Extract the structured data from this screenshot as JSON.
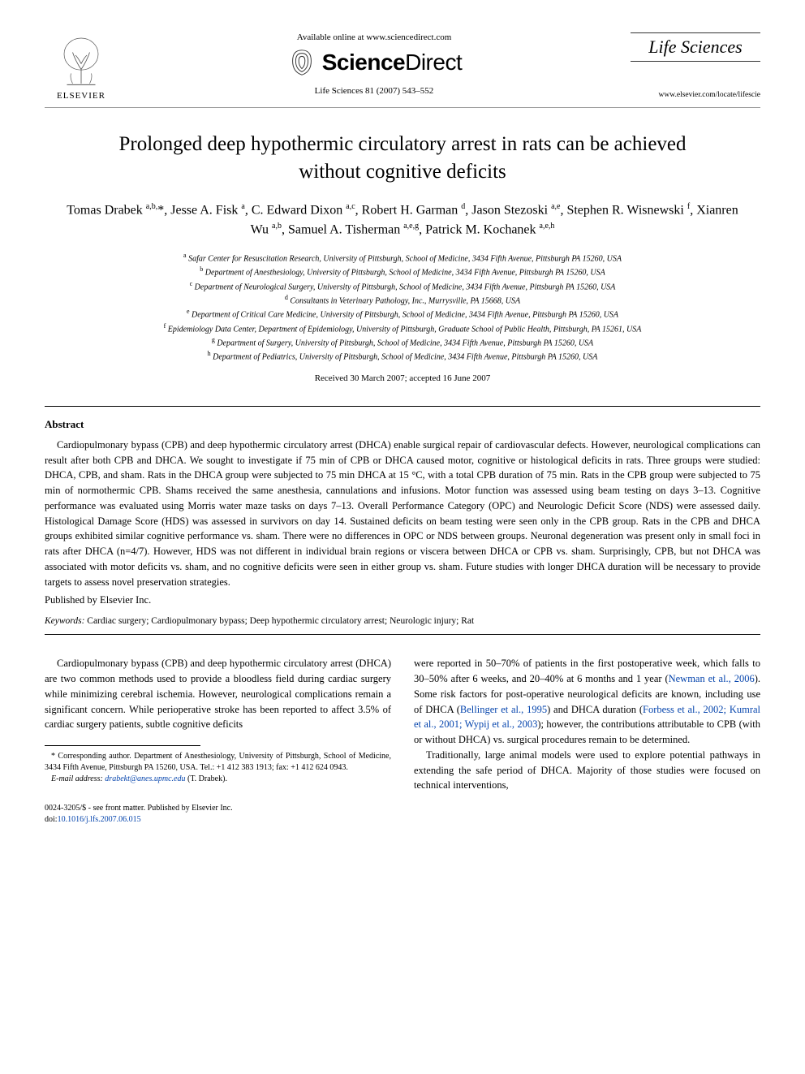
{
  "header": {
    "elsevier_label": "ELSEVIER",
    "available_online": "Available online at www.sciencedirect.com",
    "sd_science": "Science",
    "sd_direct": "Direct",
    "citation": "Life Sciences 81 (2007) 543–552",
    "journal_name": "Life Sciences",
    "journal_url": "www.elsevier.com/locate/lifescie"
  },
  "title": "Prolonged deep hypothermic circulatory arrest in rats can be achieved without cognitive deficits",
  "authors_html": "Tomas Drabek <sup>a,b,</sup>*, Jesse A. Fisk <sup>a</sup>, C. Edward Dixon <sup>a,c</sup>, Robert H. Garman <sup>d</sup>, Jason Stezoski <sup>a,e</sup>, Stephen R. Wisnewski <sup>f</sup>, Xianren Wu <sup>a,b</sup>, Samuel A. Tisherman <sup>a,e,g</sup>, Patrick M. Kochanek <sup>a,e,h</sup>",
  "affiliations": [
    {
      "sup": "a",
      "text": "Safar Center for Resuscitation Research, University of Pittsburgh, School of Medicine, 3434 Fifth Avenue, Pittsburgh PA 15260, USA"
    },
    {
      "sup": "b",
      "text": "Department of Anesthesiology, University of Pittsburgh, School of Medicine, 3434 Fifth Avenue, Pittsburgh PA 15260, USA"
    },
    {
      "sup": "c",
      "text": "Department of Neurological Surgery, University of Pittsburgh, School of Medicine, 3434 Fifth Avenue, Pittsburgh PA 15260, USA"
    },
    {
      "sup": "d",
      "text": "Consultants in Veterinary Pathology, Inc., Murrysville, PA 15668, USA"
    },
    {
      "sup": "e",
      "text": "Department of Critical Care Medicine, University of Pittsburgh, School of Medicine, 3434 Fifth Avenue, Pittsburgh PA 15260, USA"
    },
    {
      "sup": "f",
      "text": "Epidemiology Data Center, Department of Epidemiology, University of Pittsburgh, Graduate School of Public Health, Pittsburgh, PA 15261, USA"
    },
    {
      "sup": "g",
      "text": "Department of Surgery, University of Pittsburgh, School of Medicine, 3434 Fifth Avenue, Pittsburgh PA 15260, USA"
    },
    {
      "sup": "h",
      "text": "Department of Pediatrics, University of Pittsburgh, School of Medicine, 3434 Fifth Avenue, Pittsburgh PA 15260, USA"
    }
  ],
  "dates": "Received 30 March 2007; accepted 16 June 2007",
  "abstract_heading": "Abstract",
  "abstract_body": "Cardiopulmonary bypass (CPB) and deep hypothermic circulatory arrest (DHCA) enable surgical repair of cardiovascular defects. However, neurological complications can result after both CPB and DHCA. We sought to investigate if 75 min of CPB or DHCA caused motor, cognitive or histological deficits in rats. Three groups were studied: DHCA, CPB, and sham. Rats in the DHCA group were subjected to 75 min DHCA at 15 °C, with a total CPB duration of 75 min. Rats in the CPB group were subjected to 75 min of normothermic CPB. Shams received the same anesthesia, cannulations and infusions. Motor function was assessed using beam testing on days 3–13. Cognitive performance was evaluated using Morris water maze tasks on days 7–13. Overall Performance Category (OPC) and Neurologic Deficit Score (NDS) were assessed daily. Histological Damage Score (HDS) was assessed in survivors on day 14. Sustained deficits on beam testing were seen only in the CPB group. Rats in the CPB and DHCA groups exhibited similar cognitive performance vs. sham. There were no differences in OPC or NDS between groups. Neuronal degeneration was present only in small foci in rats after DHCA (n=4/7). However, HDS was not different in individual brain regions or viscera between DHCA or CPB vs. sham. Surprisingly, CPB, but not DHCA was associated with motor deficits vs. sham, and no cognitive deficits were seen in either group vs. sham. Future studies with longer DHCA duration will be necessary to provide targets to assess novel preservation strategies.",
  "published": "Published by Elsevier Inc.",
  "keywords_label": "Keywords:",
  "keywords": "Cardiac surgery; Cardiopulmonary bypass; Deep hypothermic circulatory arrest; Neurologic injury; Rat",
  "body": {
    "left_p1": "Cardiopulmonary bypass (CPB) and deep hypothermic circulatory arrest (DHCA) are two common methods used to provide a bloodless field during cardiac surgery while minimizing cerebral ischemia. However, neurological complications remain a significant concern. While perioperative stroke has been reported to affect 3.5% of cardiac surgery patients, subtle cognitive deficits",
    "right_p1_a": "were reported in 50–70% of patients in the first postoperative week, which falls to 30–50% after 6 weeks, and 20–40% at 6 months and 1 year (",
    "right_p1_link1": "Newman et al., 2006",
    "right_p1_b": "). Some risk factors for post-operative neurological deficits are known, including use of DHCA (",
    "right_p1_link2": "Bellinger et al., 1995",
    "right_p1_c": ") and DHCA duration (",
    "right_p1_link3": "Forbess et al., 2002; Kumral et al., 2001; Wypij et al., 2003",
    "right_p1_d": "); however, the contributions attributable to CPB (with or without DHCA) vs. surgical procedures remain to be determined.",
    "right_p2": "Traditionally, large animal models were used to explore potential pathways in extending the safe period of DHCA. Majority of those studies were focused on technical interventions,"
  },
  "footnote": {
    "corr": "* Corresponding author. Department of Anesthesiology, University of Pittsburgh, School of Medicine, 3434 Fifth Avenue, Pittsburgh PA 15260, USA. Tel.: +1 412 383 1913; fax: +1 412 624 0943.",
    "email_label": "E-mail address:",
    "email": "drabekt@anes.upmc.edu",
    "email_suffix": "(T. Drabek)."
  },
  "doi": {
    "line1": "0024-3205/$ - see front matter. Published by Elsevier Inc.",
    "line2_prefix": "doi:",
    "line2_doi": "10.1016/j.lfs.2007.06.015"
  },
  "colors": {
    "link": "#0645ad",
    "text": "#000000",
    "rule": "#000000"
  }
}
